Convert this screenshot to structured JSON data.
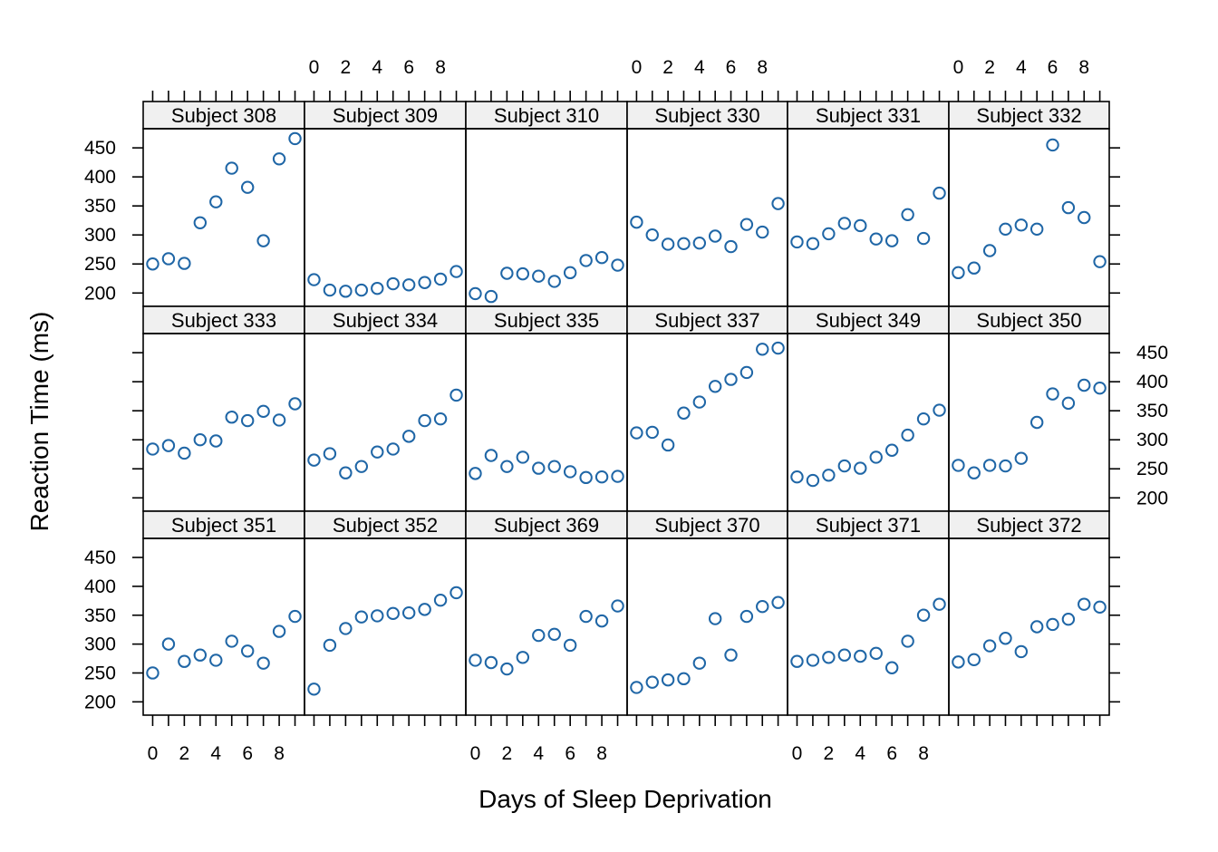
{
  "chart_data": {
    "type": "scatter",
    "layout": "lattice 6 columns x 3 rows",
    "xlabel": "Days of Sleep Deprivation",
    "ylabel": "Reaction Time (ms)",
    "xlim": [
      -0.6,
      9.6
    ],
    "ylim": [
      177,
      483
    ],
    "x_ticks": [
      0,
      2,
      4,
      6,
      8
    ],
    "y_ticks": [
      200,
      250,
      300,
      350,
      400,
      450
    ],
    "point_color": "#1f66a6",
    "strip_color": "#f0f0f0",
    "x": [
      0,
      1,
      2,
      3,
      4,
      5,
      6,
      7,
      8,
      9
    ],
    "series": [
      {
        "name": "Subject 308",
        "values": [
          250,
          259,
          251,
          321,
          357,
          415,
          382,
          290,
          431,
          466
        ]
      },
      {
        "name": "Subject 309",
        "values": [
          223,
          205,
          203,
          205,
          208,
          216,
          214,
          218,
          224,
          237
        ]
      },
      {
        "name": "Subject 310",
        "values": [
          199,
          194,
          234,
          233,
          229,
          220,
          235,
          256,
          261,
          248
        ]
      },
      {
        "name": "Subject 330",
        "values": [
          322,
          300,
          284,
          285,
          286,
          298,
          280,
          318,
          305,
          354
        ]
      },
      {
        "name": "Subject 331",
        "values": [
          288,
          285,
          302,
          320,
          316,
          293,
          290,
          335,
          294,
          372
        ]
      },
      {
        "name": "Subject 332",
        "values": [
          235,
          243,
          273,
          310,
          317,
          310,
          455,
          347,
          330,
          254
        ]
      },
      {
        "name": "Subject 333",
        "values": [
          284,
          290,
          277,
          300,
          298,
          339,
          333,
          349,
          334,
          362
        ]
      },
      {
        "name": "Subject 334",
        "values": [
          265,
          276,
          243,
          254,
          279,
          284,
          306,
          333,
          336,
          377
        ]
      },
      {
        "name": "Subject 335",
        "values": [
          242,
          273,
          254,
          270,
          251,
          254,
          245,
          235,
          236,
          237
        ]
      },
      {
        "name": "Subject 337",
        "values": [
          312,
          313,
          291,
          346,
          365,
          392,
          404,
          416,
          456,
          458
        ]
      },
      {
        "name": "Subject 349",
        "values": [
          236,
          230,
          239,
          255,
          251,
          270,
          282,
          308,
          336,
          351
        ]
      },
      {
        "name": "Subject 350",
        "values": [
          256,
          243,
          256,
          255,
          268,
          330,
          379,
          363,
          394,
          389
        ]
      },
      {
        "name": "Subject 351",
        "values": [
          250,
          300,
          270,
          281,
          272,
          305,
          288,
          267,
          322,
          348
        ]
      },
      {
        "name": "Subject 352",
        "values": [
          222,
          298,
          327,
          347,
          349,
          353,
          354,
          360,
          376,
          389
        ]
      },
      {
        "name": "Subject 369",
        "values": [
          272,
          268,
          257,
          277,
          315,
          317,
          298,
          348,
          340,
          366
        ]
      },
      {
        "name": "Subject 370",
        "values": [
          225,
          234,
          238,
          240,
          267,
          344,
          281,
          348,
          365,
          372
        ]
      },
      {
        "name": "Subject 371",
        "values": [
          270,
          272,
          277,
          281,
          279,
          284,
          259,
          305,
          350,
          369
        ]
      },
      {
        "name": "Subject 372",
        "values": [
          269,
          273,
          297,
          310,
          287,
          330,
          334,
          343,
          369,
          364
        ]
      }
    ]
  }
}
